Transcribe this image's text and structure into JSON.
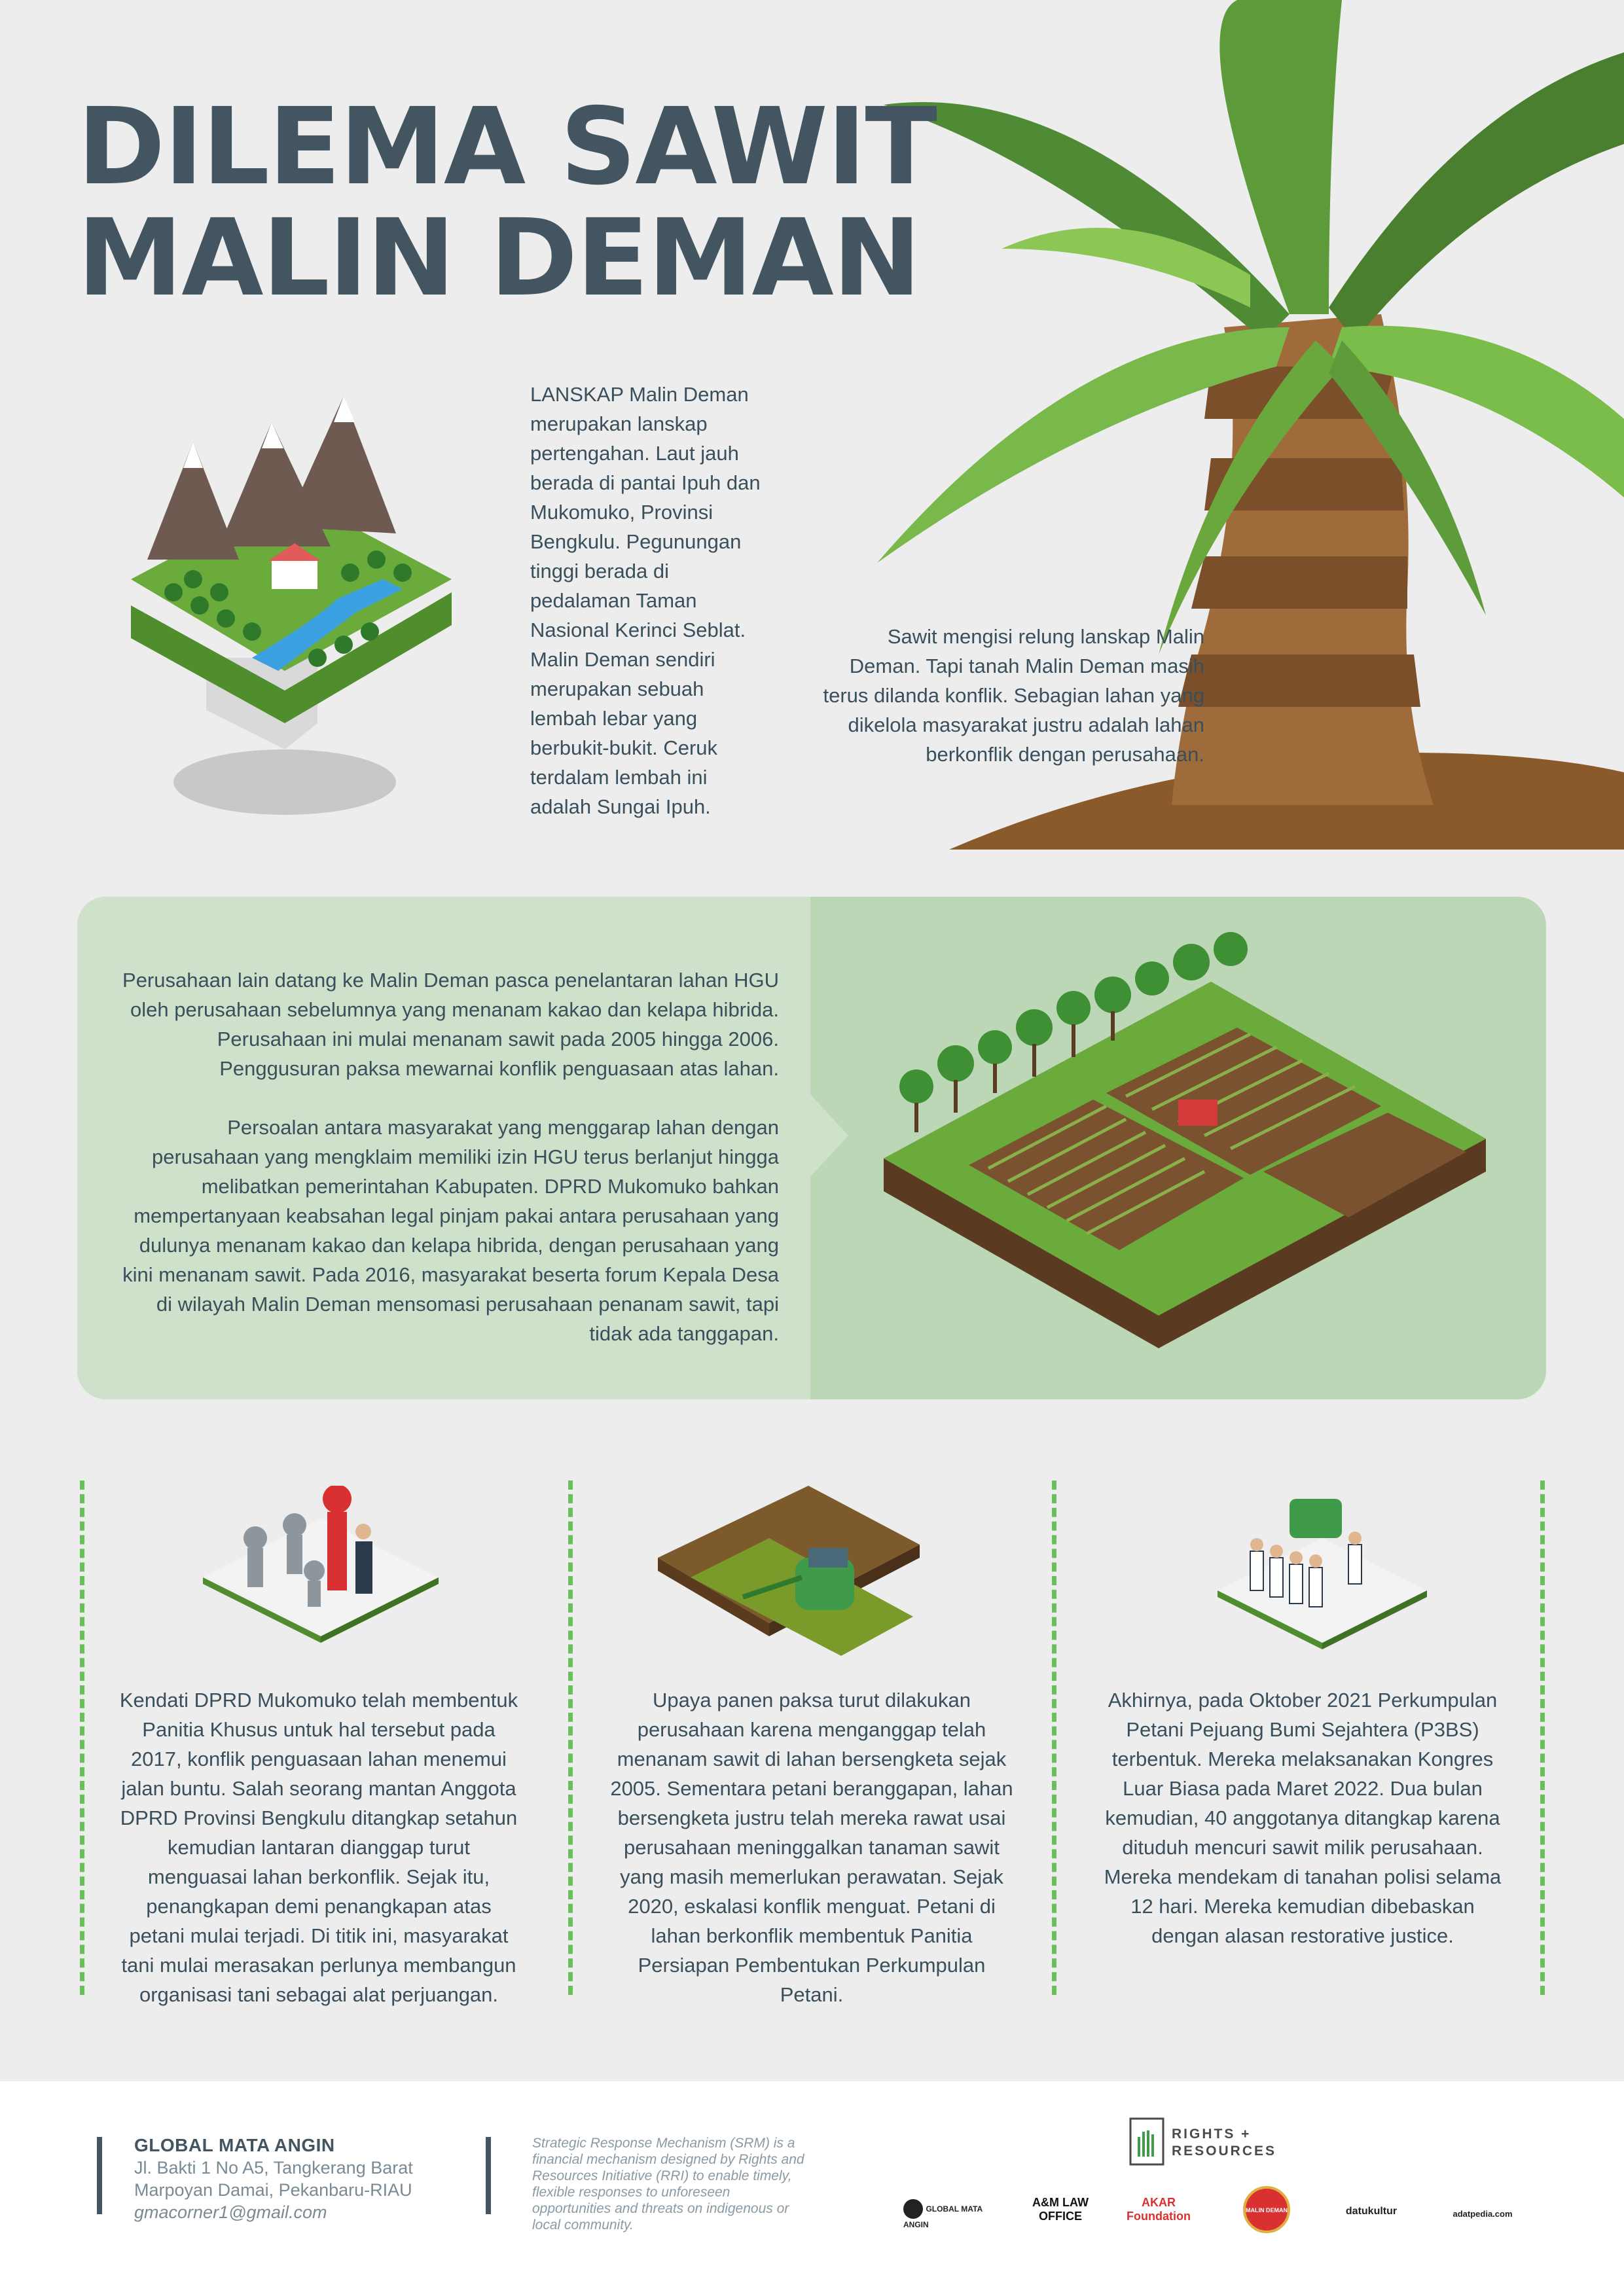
{
  "title": {
    "line1": "DILEMA SAWIT",
    "line2": "MALIN DEMAN"
  },
  "intro": {
    "text": "LANSKAP Malin Deman merupakan lanskap pertengahan. Laut jauh berada di pantai Ipuh dan Mukomuko, Provinsi Bengkulu. Pegunungan tinggi berada di pedalaman Taman Nasional Kerinci Seblat. Malin Deman sendiri merupakan sebuah lembah lebar yang berbukit-bukit. Ceruk terdalam lembah ini adalah Sungai Ipuh."
  },
  "palm": {
    "text": "Sawit mengisi relung lanskap Malin Deman. Tapi tanah Malin Deman masih terus dilanda konflik. Sebagian lahan yang dikelola masyarakat justru adalah lahan berkonflik dengan perusahaan."
  },
  "panel": {
    "para1": "Perusahaan lain datang ke Malin Deman pasca penelantaran lahan HGU oleh perusahaan sebelumnya yang menanam kakao dan kelapa hibrida. Perusahaan ini mulai menanam sawit pada 2005 hingga 2006. Penggusuran paksa mewarnai konflik penguasaan atas lahan.",
    "para2": "Persoalan antara masyarakat yang menggarap lahan dengan perusahaan yang mengklaim memiliki izin HGU terus berlanjut hingga melibatkan pemerintahan Kabupaten. DPRD Mukomuko bahkan mempertanyaan keabsahan legal pinjam pakai antara perusahaan yang dulunya menanam kakao dan kelapa hibrida, dengan perusahaan yang kini menanam sawit. Pada 2016, masyarakat beserta forum Kepala Desa di wilayah Malin Deman mensomasi perusahaan penanam sawit, tapi tidak ada tanggapan."
  },
  "columns": [
    {
      "text": "Kendati DPRD Mukomuko telah membentuk Panitia Khusus untuk hal tersebut pada 2017, konflik penguasaan lahan menemui jalan buntu. Salah seorang mantan Anggota DPRD Provinsi Bengkulu ditangkap setahun kemudian lantaran dianggap turut menguasai lahan berkonflik. Sejak itu, penangkapan demi penangkapan atas petani mulai terjadi. Di titik ini, masyarakat tani mulai merasakan perlunya membangun organisasi tani sebagai alat perjuangan."
    },
    {
      "text": "Upaya panen paksa turut dilakukan perusahaan karena menganggap telah menanam sawit di lahan bersengketa sejak 2005. Sementara petani beranggapan, lahan bersengketa justru telah mereka rawat usai perusahaan meninggalkan tanaman sawit yang masih memerlukan perawatan. Sejak 2020, eskalasi konflik menguat. Petani di lahan berkonflik membentuk Panitia Persiapan Pembentukan Perkumpulan Petani."
    },
    {
      "text": "Akhirnya, pada Oktober 2021 Perkumpulan Petani Pejuang Bumi Sejahtera (P3BS) terbentuk. Mereka melaksanakan Kongres Luar Biasa pada Maret 2022. Dua bulan kemudian, 40 anggotanya ditangkap karena dituduh mencuri sawit milik perusahaan. Mereka mendekam di tanahan polisi selama 12 hari. Mereka kemudian dibebaskan dengan alasan restorative justice."
    }
  ],
  "footer": {
    "org": "GLOBAL MATA ANGIN",
    "address1": "Jl. Bakti 1 No A5, Tangkerang Barat",
    "address2": "Marpoyan Damai, Pekanbaru-RIAU",
    "email": "gmacorner1@gmail.com",
    "srm": "Strategic Response Mechanism (SRM) is a financial mechanism designed by Rights and Resources Initiative (RRI) to enable timely, flexible responses to unforeseen opportunities and threats on indigenous or local community.",
    "rights_logo_1": "RIGHTS +",
    "rights_logo_2": "RESOURCES",
    "logos": [
      "GLOBAL MATA ANGIN",
      "A&M LAW OFFICE",
      "AKAR Foundation",
      "MALIN DEMAN",
      "datukultur",
      "adatpedia.com"
    ]
  },
  "colors": {
    "title": "#435560",
    "panel": "#bcd7b6",
    "grass": "#6aab3c",
    "dash": "#69c05a"
  }
}
